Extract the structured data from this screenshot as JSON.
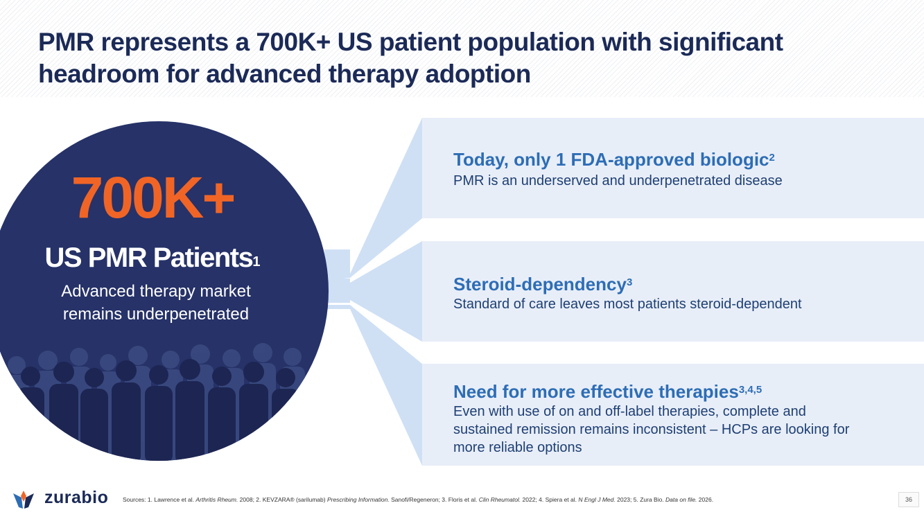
{
  "slide": {
    "title_line1": "PMR represents a 700K+ US patient population with significant",
    "title_line2": "headroom for advanced therapy adoption"
  },
  "circle": {
    "big_number": "700K+",
    "label": "US PMR Patients",
    "label_sup": "1",
    "desc_line1": "Advanced therapy market",
    "desc_line2": "remains underpenetrated"
  },
  "panels": [
    {
      "heading": "Today, only 1 FDA-approved biologic",
      "sup": "2",
      "body": "PMR is an underserved and underpenetrated disease"
    },
    {
      "heading": "Steroid-dependency",
      "sup": "3",
      "body": "Standard of care leaves most patients steroid-dependent"
    },
    {
      "heading": "Need for more effective therapies",
      "sup": "3,4,5",
      "body_line1": "Even with use of on and off-label therapies, complete and",
      "body_line2": "sustained remission remains inconsistent – HCPs are looking for",
      "body_line3": "more reliable options"
    }
  ],
  "footer": {
    "brand": "zurabio",
    "src_1": "Sources: 1. Lawrence et al. ",
    "src_1_j": "Arthritis Rheum.",
    "src_2": " 2008; 2. KEVZARA® (sarilumab) ",
    "src_2_j": "Prescribing Information.",
    "src_3": " Sanofi/Regeneron; 3. Floris et al. ",
    "src_3_j": "Clin Rheumatol.",
    "src_4": " 2022; 4. Spiera et al. ",
    "src_4_j": "N Engl J Med.",
    "src_5": " 2023; 5. Zura Bio. ",
    "src_5_j": "Data on file.",
    "src_6": " 2026.",
    "page_number": "36"
  },
  "colors": {
    "navy": "#263268",
    "orange": "#f06526",
    "panel_bg": "#e8eef8",
    "heading_blue": "#2d6db5",
    "title_navy": "#1b2a57"
  }
}
